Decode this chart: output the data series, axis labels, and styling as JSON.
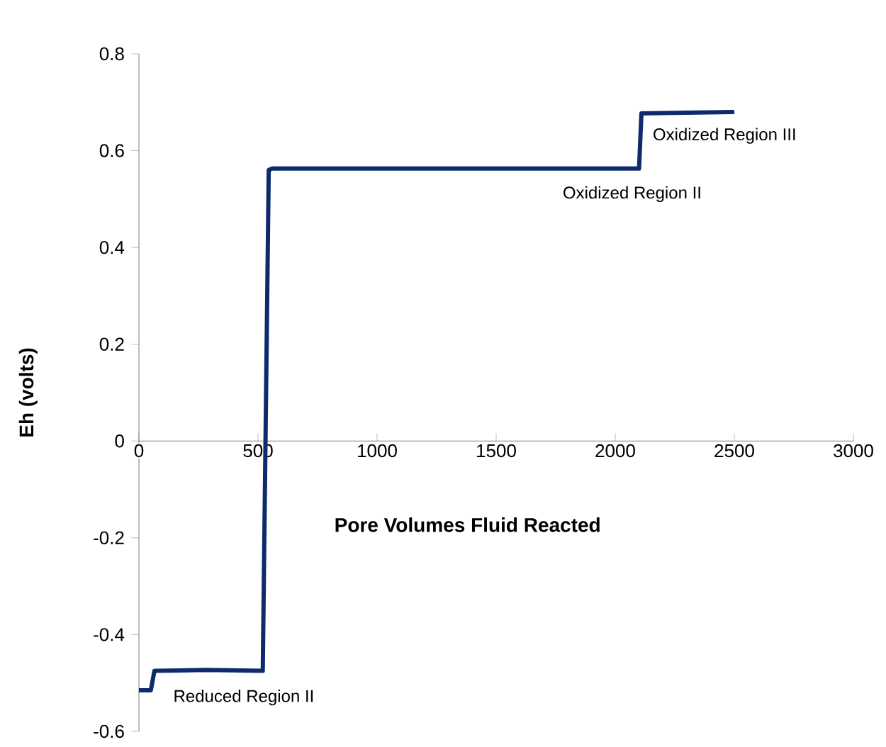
{
  "chart_data": {
    "type": "line",
    "xlabel": "Pore Volumes Fluid Reacted",
    "ylabel": "Eh (volts)",
    "xlim": [
      0,
      3000
    ],
    "xticks": [
      0,
      500,
      1000,
      1500,
      2000,
      2500,
      3000
    ],
    "ylim": [
      -0.6,
      0.8
    ],
    "yticks": [
      -0.6,
      -0.4,
      -0.2,
      0,
      0.2,
      0.4,
      0.6,
      0.8
    ],
    "marker": "none",
    "line_style": "solid",
    "series": [
      {
        "color": "#0d2a6b",
        "x": [
          0,
          50,
          65,
          280,
          520,
          545,
          560,
          2100,
          2110,
          2500
        ],
        "values": [
          -0.515,
          -0.515,
          -0.475,
          -0.473,
          -0.475,
          0.56,
          0.563,
          0.563,
          0.677,
          0.68
        ]
      }
    ],
    "annotations": [
      "Reduced Region II",
      "Oxidized Region II",
      "Oxidized Region III"
    ]
  }
}
